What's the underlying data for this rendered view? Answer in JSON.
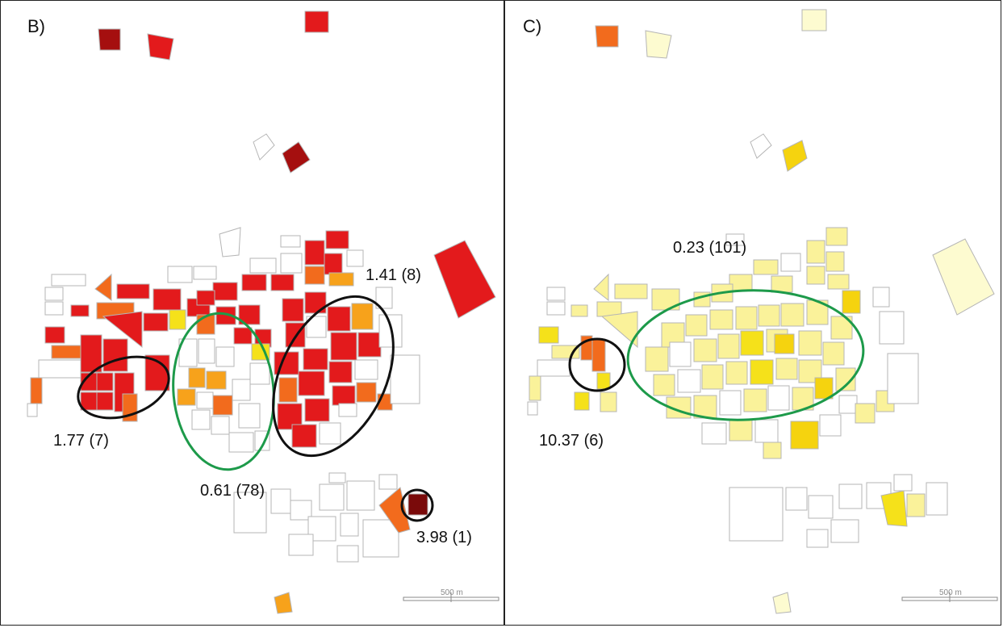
{
  "panels": [
    {
      "letter": "B)",
      "annotations": [
        "1.41 (8)",
        "1.77 (7)",
        "0.61 (78)",
        "3.98 (1)"
      ],
      "scale_label": "500 m"
    },
    {
      "letter": "C)",
      "annotations": [
        "0.23 (101)",
        "10.37 (6)"
      ],
      "scale_label": "500 m"
    }
  ],
  "colors": {
    "dark_red": "#a50f0f",
    "red": "#e31a1c",
    "orange": "#f26b1d",
    "amber": "#f7a21b",
    "yellow": "#f5e11a",
    "light_yellow": "#faf29a",
    "pale_yellow": "#fdfbd0",
    "outline": "#b5b5b5",
    "ellipse_green": "#1d9a4a",
    "ellipse_black": "#111111"
  }
}
